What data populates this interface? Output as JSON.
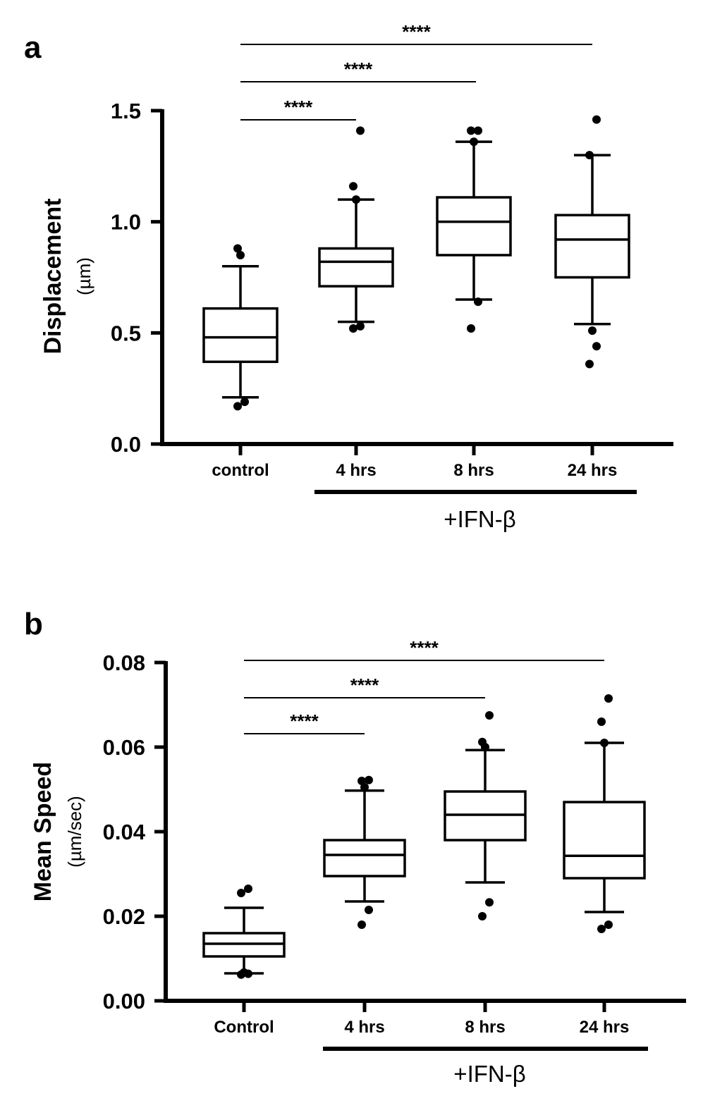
{
  "panels": [
    {
      "letter": "a",
      "group_label": "+IFN-β"
    },
    {
      "letter": "b",
      "group_label": "+IFN-β"
    }
  ],
  "chart_data": [
    {
      "type": "box",
      "panel": "a",
      "title": "",
      "ylabel": "Displacement",
      "yunit": "(µm)",
      "ylim": [
        0,
        1.5
      ],
      "yticks": [
        0.0,
        0.5,
        1.0,
        1.5
      ],
      "ytick_labels": [
        "0.0",
        "0.5",
        "1.0",
        "1.5"
      ],
      "categories": [
        "control",
        "4 hrs",
        "8 hrs",
        "24 hrs"
      ],
      "boxes": [
        {
          "category": "control",
          "whisker_low": 0.21,
          "q1": 0.37,
          "median": 0.48,
          "q3": 0.61,
          "whisker_high": 0.8,
          "outliers": [
            0.17,
            0.19,
            0.85,
            0.88
          ]
        },
        {
          "category": "4 hrs",
          "whisker_low": 0.55,
          "q1": 0.71,
          "median": 0.82,
          "q3": 0.88,
          "whisker_high": 1.1,
          "outliers": [
            0.52,
            0.53,
            1.1,
            1.16,
            1.41
          ]
        },
        {
          "category": "8 hrs",
          "whisker_low": 0.65,
          "q1": 0.85,
          "median": 1.0,
          "q3": 1.11,
          "whisker_high": 1.36,
          "outliers": [
            0.52,
            0.64,
            1.36,
            1.41,
            1.41
          ]
        },
        {
          "category": "24 hrs",
          "whisker_low": 0.54,
          "q1": 0.75,
          "median": 0.92,
          "q3": 1.03,
          "whisker_high": 1.3,
          "outliers": [
            0.36,
            0.44,
            0.51,
            1.3,
            1.46
          ]
        }
      ],
      "significance": [
        {
          "from": "control",
          "to": "4 hrs",
          "label": "****"
        },
        {
          "from": "control",
          "to": "8 hrs",
          "label": "****"
        },
        {
          "from": "control",
          "to": "24 hrs",
          "label": "****"
        }
      ],
      "group_bracket": {
        "from": "4 hrs",
        "to": "24 hrs",
        "label": "+IFN-β"
      }
    },
    {
      "type": "box",
      "panel": "b",
      "title": "",
      "ylabel": "Mean Speed",
      "yunit": "(µm/sec)",
      "ylim": [
        0,
        0.08
      ],
      "yticks": [
        0.0,
        0.02,
        0.04,
        0.06,
        0.08
      ],
      "ytick_labels": [
        "0.00",
        "0.02",
        "0.04",
        "0.06",
        "0.08"
      ],
      "categories": [
        "Control",
        "4 hrs",
        "8 hrs",
        "24 hrs"
      ],
      "boxes": [
        {
          "category": "Control",
          "whisker_low": 0.0065,
          "q1": 0.0105,
          "median": 0.0135,
          "q3": 0.016,
          "whisker_high": 0.022,
          "outliers": [
            0.0062,
            0.0064,
            0.0067,
            0.0255,
            0.0265
          ]
        },
        {
          "category": "4 hrs",
          "whisker_low": 0.0235,
          "q1": 0.0295,
          "median": 0.0345,
          "q3": 0.038,
          "whisker_high": 0.0497,
          "outliers": [
            0.018,
            0.0215,
            0.0505,
            0.052,
            0.0522
          ]
        },
        {
          "category": "8 hrs",
          "whisker_low": 0.028,
          "q1": 0.038,
          "median": 0.044,
          "q3": 0.0495,
          "whisker_high": 0.0593,
          "outliers": [
            0.02,
            0.0233,
            0.06,
            0.0612,
            0.0675
          ]
        },
        {
          "category": "24 hrs",
          "whisker_low": 0.021,
          "q1": 0.029,
          "median": 0.0343,
          "q3": 0.047,
          "whisker_high": 0.061,
          "outliers": [
            0.017,
            0.018,
            0.061,
            0.066,
            0.0715
          ]
        }
      ],
      "significance": [
        {
          "from": "Control",
          "to": "4 hrs",
          "label": "****"
        },
        {
          "from": "Control",
          "to": "8 hrs",
          "label": "****"
        },
        {
          "from": "Control",
          "to": "24 hrs",
          "label": "****"
        }
      ],
      "group_bracket": {
        "from": "4 hrs",
        "to": "24 hrs",
        "label": "+IFN-β"
      }
    }
  ]
}
